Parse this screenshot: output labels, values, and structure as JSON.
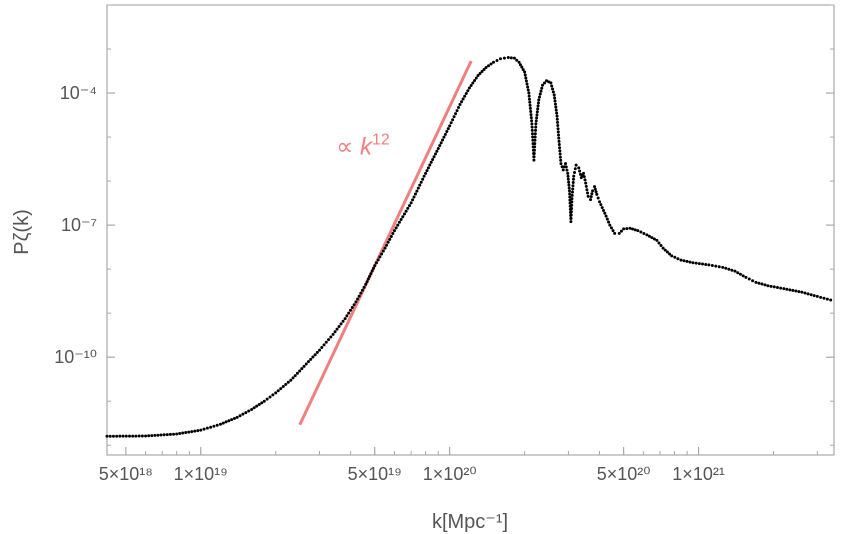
{
  "chart_data": {
    "type": "scatter",
    "title": "",
    "xlabel": "k[Mpc⁻¹]",
    "ylabel": "Pζ(k)",
    "x_scale": "log",
    "y_scale": "log",
    "xlim": [
      4.2e+18,
      3.5e+21
    ],
    "ylim": [
      6e-13,
      0.01
    ],
    "grid": false,
    "x_ticks": [
      {
        "value": 5e+18,
        "label": "5×10¹⁸"
      },
      {
        "value": 1e+19,
        "label": "1×10¹⁹"
      },
      {
        "value": 5e+19,
        "label": "5×10¹⁹"
      },
      {
        "value": 1e+20,
        "label": "1×10²⁰"
      },
      {
        "value": 5e+20,
        "label": "5×10²⁰"
      },
      {
        "value": 1e+21,
        "label": "1×10²¹"
      }
    ],
    "y_ticks": [
      {
        "value": 0.0001,
        "label": "10⁻⁴"
      },
      {
        "value": 1e-07,
        "label": "10⁻⁷"
      },
      {
        "value": 1e-10,
        "label": "10⁻¹⁰"
      }
    ],
    "series": [
      {
        "type": "scatter",
        "color": "#000000",
        "points": [
          [
            4.2e+18,
            1.6e-12
          ],
          [
            6e+18,
            1.62e-12
          ],
          [
            8e+18,
            1.8e-12
          ],
          [
            1e+19,
            2.2e-12
          ],
          [
            1.2e+19,
            3e-12
          ],
          [
            1.4e+19,
            4.3e-12
          ],
          [
            1.6e+19,
            6.5e-12
          ],
          [
            1.8e+19,
            1e-11
          ],
          [
            2e+19,
            1.55e-11
          ],
          [
            2.3e+19,
            3e-11
          ],
          [
            2.6e+19,
            6.2e-11
          ],
          [
            3e+19,
            1.45e-10
          ],
          [
            3.4e+19,
            3.3e-10
          ],
          [
            3.8e+19,
            7.5e-10
          ],
          [
            4.2e+19,
            1.8e-09
          ],
          [
            4.6e+19,
            4.5e-09
          ],
          [
            5e+19,
            1.2e-08
          ],
          [
            5.5e+19,
            3e-08
          ],
          [
            6e+19,
            7.5e-08
          ],
          [
            7e+19,
            3.2e-07
          ],
          [
            8e+19,
            1.5e-06
          ],
          [
            9e+19,
            5.5e-06
          ],
          [
            1e+20,
            1.8e-05
          ],
          [
            1.1e+20,
            5.5e-05
          ],
          [
            1.2e+20,
            0.00013
          ],
          [
            1.3e+20,
            0.00025
          ],
          [
            1.4e+20,
            0.00038
          ],
          [
            1.5e+20,
            0.0005
          ],
          [
            1.6e+20,
            0.0006
          ],
          [
            1.72e+20,
            0.00064
          ],
          [
            1.82e+20,
            0.00062
          ],
          [
            1.9e+20,
            0.0005
          ],
          [
            2e+20,
            0.0003
          ],
          [
            2.08e+20,
            0.0001
          ],
          [
            2.14e+20,
            2e-05
          ],
          [
            2.18e+20,
            3e-06
          ],
          [
            2.22e+20,
            2e-05
          ],
          [
            2.28e+20,
            7e-05
          ],
          [
            2.36e+20,
            0.00015
          ],
          [
            2.45e+20,
            0.00019
          ],
          [
            2.55e+20,
            0.00017
          ],
          [
            2.63e+20,
            9e-05
          ],
          [
            2.7e+20,
            3e-05
          ],
          [
            2.75e+20,
            8e-06
          ],
          [
            2.8e+20,
            2.5e-06
          ],
          [
            2.86e+20,
            1.8e-06
          ],
          [
            2.92e+20,
            2.5e-06
          ],
          [
            2.98e+20,
            1.5e-06
          ],
          [
            3.03e+20,
            6e-07
          ],
          [
            3.07e+20,
            1.2e-07
          ],
          [
            3.1e+20,
            4e-07
          ],
          [
            3.15e+20,
            1.3e-06
          ],
          [
            3.22e+20,
            2.3e-06
          ],
          [
            3.3e+20,
            2e-06
          ],
          [
            3.38e+20,
            1.2e-06
          ],
          [
            3.45e+20,
            1.5e-06
          ],
          [
            3.52e+20,
            9e-07
          ],
          [
            3.6e+20,
            4.5e-07
          ],
          [
            3.68e+20,
            3.8e-07
          ],
          [
            3.75e+20,
            6e-07
          ],
          [
            3.82e+20,
            7.5e-07
          ],
          [
            3.9e+20,
            5e-07
          ],
          [
            4e+20,
            3.4e-07
          ],
          [
            4.1e+20,
            2.5e-07
          ],
          [
            4.25e+20,
            1.6e-07
          ],
          [
            4.4e+20,
            1e-07
          ],
          [
            4.6e+20,
            6.5e-08
          ],
          [
            4.8e+20,
            6.5e-08
          ],
          [
            5e+20,
            8.2e-08
          ],
          [
            5.3e+20,
            8.5e-08
          ],
          [
            5.7e+20,
            7.5e-08
          ],
          [
            6.2e+20,
            6e-08
          ],
          [
            6.8e+20,
            4.5e-08
          ],
          [
            7.2e+20,
            3e-08
          ],
          [
            7.8e+20,
            2e-08
          ],
          [
            8.5e+20,
            1.6e-08
          ],
          [
            9.5e+20,
            1.4e-08
          ],
          [
            1.1e+21,
            1.25e-08
          ],
          [
            1.25e+21,
            1.1e-08
          ],
          [
            1.4e+21,
            9e-09
          ],
          [
            1.55e+21,
            6.5e-09
          ],
          [
            1.7e+21,
            5e-09
          ],
          [
            1.9e+21,
            4.2e-09
          ],
          [
            2.2e+21,
            3.6e-09
          ],
          [
            2.6e+21,
            3e-09
          ],
          [
            3e+21,
            2.4e-09
          ],
          [
            3.5e+21,
            1.9e-09
          ]
        ]
      },
      {
        "type": "line",
        "name": "∝ k¹²",
        "color": "#f08080",
        "x_range": [
          2.5e+19,
          1.22e+20
        ],
        "k_ref": 5e+19,
        "p_ref": 1.2e-08,
        "exponent": 12
      }
    ],
    "annotations": [
      {
        "text": "∝ ",
        "italic_part": "k",
        "superscript": "12",
        "color": "#f08080",
        "x": 3.5e+19,
        "y": 4e-06
      }
    ]
  }
}
